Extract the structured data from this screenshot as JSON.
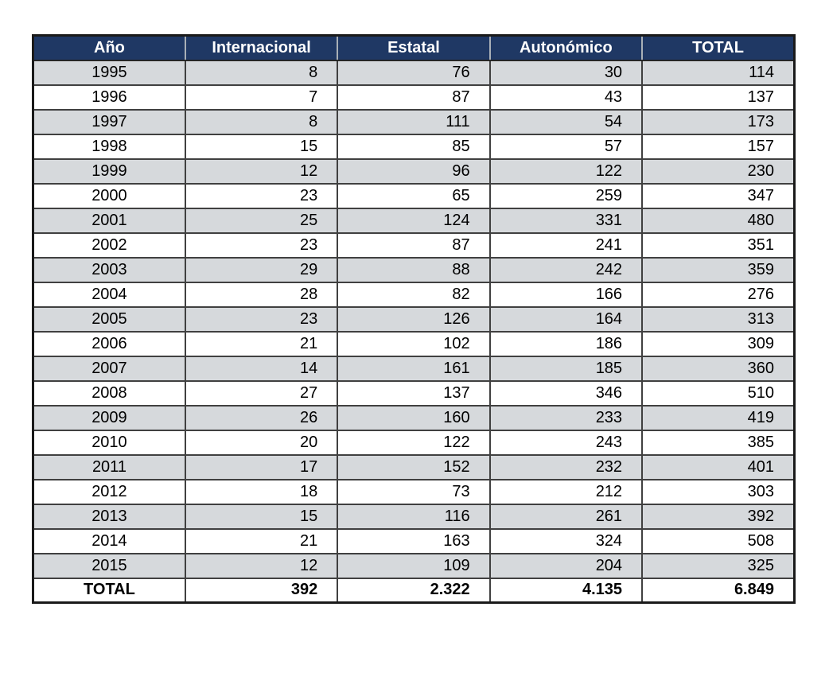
{
  "chart_data": {
    "type": "table",
    "title": "",
    "categories": [
      1995,
      1996,
      1997,
      1998,
      1999,
      2000,
      2001,
      2002,
      2003,
      2004,
      2005,
      2006,
      2007,
      2008,
      2009,
      2010,
      2011,
      2012,
      2013,
      2014,
      2015
    ],
    "series": [
      {
        "name": "Internacional",
        "values": [
          8,
          7,
          8,
          15,
          12,
          23,
          25,
          23,
          29,
          28,
          23,
          21,
          14,
          27,
          26,
          20,
          17,
          18,
          15,
          21,
          12
        ]
      },
      {
        "name": "Estatal",
        "values": [
          76,
          87,
          111,
          85,
          96,
          65,
          124,
          87,
          88,
          82,
          126,
          102,
          161,
          137,
          160,
          122,
          152,
          73,
          116,
          163,
          109
        ]
      },
      {
        "name": "Autonómico",
        "values": [
          30,
          43,
          54,
          57,
          122,
          259,
          331,
          241,
          242,
          166,
          164,
          186,
          185,
          346,
          233,
          243,
          232,
          212,
          261,
          324,
          204
        ]
      },
      {
        "name": "TOTAL",
        "values": [
          114,
          137,
          173,
          157,
          230,
          347,
          480,
          351,
          359,
          276,
          313,
          309,
          360,
          510,
          419,
          385,
          401,
          303,
          392,
          508,
          325
        ]
      }
    ],
    "totals": {
      "Internacional": 392,
      "Estatal": 2322,
      "Autonómico": 4135,
      "TOTAL": 6849
    }
  },
  "table": {
    "headers": [
      "Año",
      "Internacional",
      "Estatal",
      "Autonómico",
      "TOTAL"
    ],
    "rows": [
      [
        "1995",
        "8",
        "76",
        "30",
        "114"
      ],
      [
        "1996",
        "7",
        "87",
        "43",
        "137"
      ],
      [
        "1997",
        "8",
        "111",
        "54",
        "173"
      ],
      [
        "1998",
        "15",
        "85",
        "57",
        "157"
      ],
      [
        "1999",
        "12",
        "96",
        "122",
        "230"
      ],
      [
        "2000",
        "23",
        "65",
        "259",
        "347"
      ],
      [
        "2001",
        "25",
        "124",
        "331",
        "480"
      ],
      [
        "2002",
        "23",
        "87",
        "241",
        "351"
      ],
      [
        "2003",
        "29",
        "88",
        "242",
        "359"
      ],
      [
        "2004",
        "28",
        "82",
        "166",
        "276"
      ],
      [
        "2005",
        "23",
        "126",
        "164",
        "313"
      ],
      [
        "2006",
        "21",
        "102",
        "186",
        "309"
      ],
      [
        "2007",
        "14",
        "161",
        "185",
        "360"
      ],
      [
        "2008",
        "27",
        "137",
        "346",
        "510"
      ],
      [
        "2009",
        "26",
        "160",
        "233",
        "419"
      ],
      [
        "2010",
        "20",
        "122",
        "243",
        "385"
      ],
      [
        "2011",
        "17",
        "152",
        "232",
        "401"
      ],
      [
        "2012",
        "18",
        "73",
        "212",
        "303"
      ],
      [
        "2013",
        "15",
        "116",
        "261",
        "392"
      ],
      [
        "2014",
        "21",
        "163",
        "324",
        "508"
      ],
      [
        "2015",
        "12",
        "109",
        "204",
        "325"
      ]
    ],
    "total_row": [
      "TOTAL",
      "392",
      "2.322",
      "4.135",
      "6.849"
    ]
  },
  "colors": {
    "header_bg": "#1F3864",
    "header_text": "#FFFFFF",
    "row_alt_bg": "#D6D9DC",
    "row_bg": "#FFFFFF",
    "border_inner": "#404040",
    "border_outer": "#1A1A1A",
    "header_separator": "#A9B0B7",
    "text": "#000000"
  }
}
